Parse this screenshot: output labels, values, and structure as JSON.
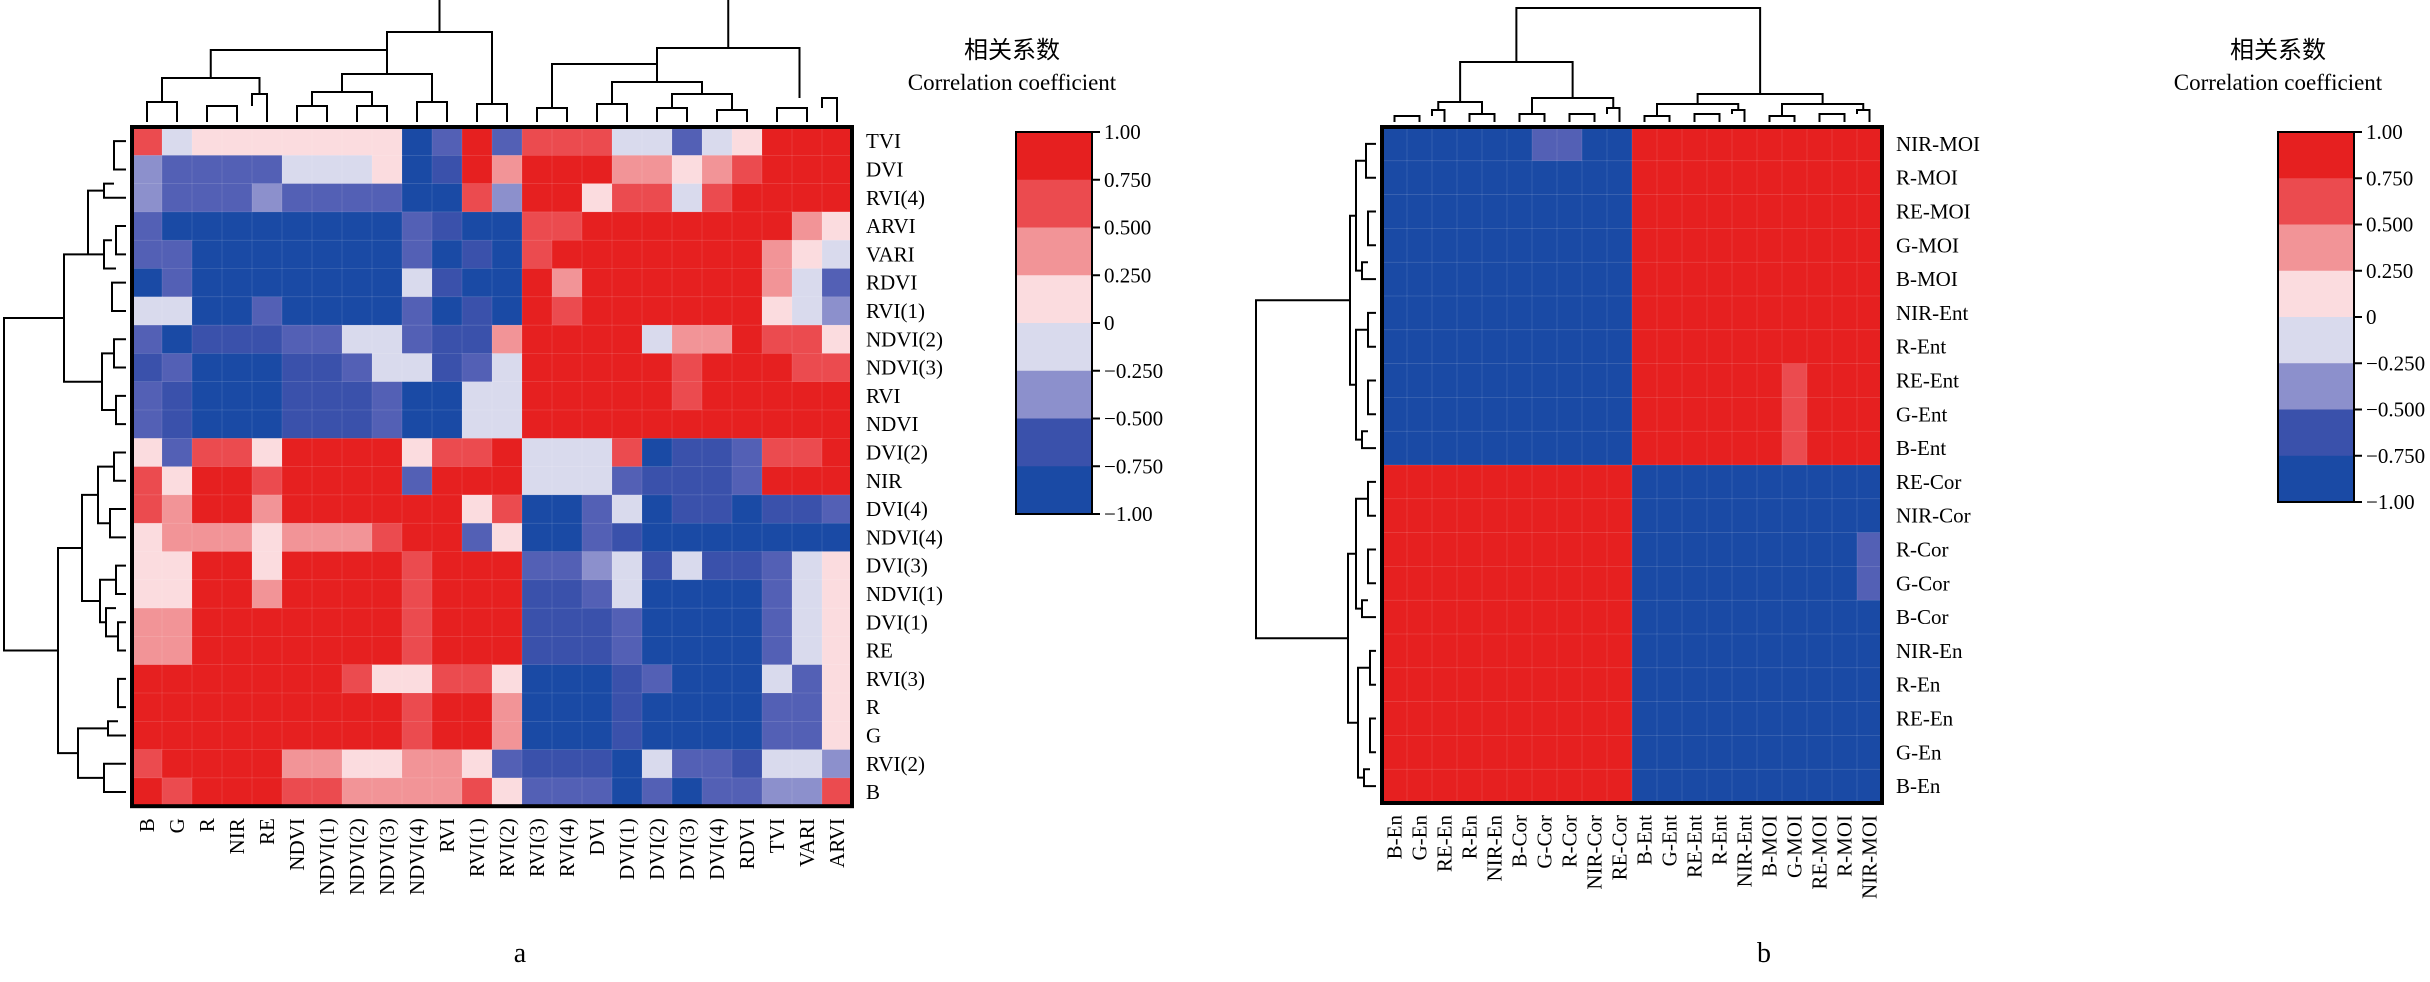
{
  "colors": {
    "scale": [
      "#1a4aa5",
      "#3a51ab",
      "#5360b5",
      "#8c90cc",
      "#d9daed",
      "#fbdcdf",
      "#f29497",
      "#eb4b4f",
      "#e62020"
    ],
    "legend_bands": [
      "#1a4aa5",
      "#3a51ab",
      "#8c90cc",
      "#d9daed",
      "#fbdcdf",
      "#f29497",
      "#eb4b4f",
      "#e62020"
    ]
  },
  "chart_data": [
    {
      "type": "heatmap",
      "panel_label": "a",
      "legend_title_cn": "相关系数",
      "legend_title_en": "Correlation coefficient",
      "legend_ticks": [
        "1.00",
        "0.750",
        "0.500",
        "0.250",
        "0",
        "−0.250",
        "−0.500",
        "−0.750",
        "−1.00"
      ],
      "value_range": [
        -1,
        1
      ],
      "rows": [
        "TVI",
        "DVI",
        "RVI(4)",
        "ARVI",
        "VARI",
        "RDVI",
        "RVI(1)",
        "NDVI(2)",
        "NDVI(3)",
        "RVI",
        "NDVI",
        "DVI(2)",
        "NIR",
        "DVI(4)",
        "NDVI(4)",
        "DVI(3)",
        "NDVI(1)",
        "DVI(1)",
        "RE",
        "RVI(3)",
        "R",
        "G",
        "RVI(2)",
        "B"
      ],
      "columns": [
        "B",
        "G",
        "R",
        "NIR",
        "RE",
        "NDVI",
        "NDVI(1)",
        "NDVI(2)",
        "NDVI(3)",
        "NDVI(4)",
        "RVI",
        "RVI(1)",
        "RVI(2)",
        "RVI(3)",
        "RVI(4)",
        "DVI",
        "DVI(1)",
        "DVI(2)",
        "DVI(3)",
        "DVI(4)",
        "RDVI",
        "TVI",
        "VARI",
        "ARVI"
      ],
      "values": [
        [
          0.6,
          -0.1,
          0.2,
          0.2,
          0.2,
          0.2,
          0.2,
          0.2,
          0.2,
          -0.9,
          -0.5,
          0.9,
          -0.4,
          0.6,
          0.7,
          0.6,
          -0.1,
          -0.1,
          -0.5,
          -0.1,
          0.3,
          1,
          1,
          1
        ],
        [
          -0.2,
          -0.5,
          -0.5,
          -0.5,
          -0.5,
          -0.1,
          -0.1,
          -0.1,
          0.2,
          -0.9,
          -0.7,
          0.8,
          0.5,
          1,
          1,
          1,
          0.4,
          0.4,
          0.2,
          0.4,
          0.6,
          1,
          1,
          1
        ],
        [
          -0.2,
          -0.5,
          -0.5,
          -0.5,
          -0.2,
          -0.5,
          -0.5,
          -0.5,
          -0.5,
          -0.9,
          -0.9,
          0.6,
          -0.2,
          1,
          1,
          0.2,
          0.6,
          0.6,
          -0.1,
          0.6,
          0.8,
          1,
          1,
          1
        ],
        [
          -0.5,
          -0.9,
          -0.9,
          -0.9,
          -0.9,
          -0.9,
          -0.9,
          -0.9,
          -0.9,
          -0.5,
          -0.7,
          -0.8,
          -0.8,
          0.7,
          0.7,
          1,
          1,
          1,
          1,
          1,
          1,
          0.8,
          0.5,
          0.3
        ],
        [
          -0.5,
          -0.5,
          -0.9,
          -0.9,
          -0.9,
          -0.9,
          -0.9,
          -0.9,
          -0.9,
          -0.5,
          -0.8,
          -0.7,
          -0.8,
          0.7,
          0.8,
          1,
          1,
          1,
          1,
          1,
          1,
          0.5,
          0.2,
          -0.1
        ],
        [
          -0.9,
          -0.5,
          -0.9,
          -0.9,
          -0.9,
          -0.9,
          -0.9,
          -0.9,
          -0.9,
          -0.1,
          -0.7,
          -0.9,
          -0.8,
          0.8,
          0.4,
          0.8,
          1,
          1,
          1,
          1,
          1,
          0.5,
          -0.1,
          -0.5
        ],
        [
          -0.1,
          -0.1,
          -0.9,
          -0.9,
          -0.5,
          -0.9,
          -0.9,
          -0.9,
          -0.9,
          -0.5,
          -0.8,
          -0.7,
          -0.9,
          0.8,
          0.6,
          0.8,
          1,
          1,
          1,
          1,
          1,
          0.2,
          0.1,
          -0.2
        ],
        [
          -0.5,
          -0.9,
          -0.7,
          -0.7,
          -0.7,
          -0.5,
          -0.5,
          -0.1,
          -0.1,
          -0.5,
          -0.6,
          -0.7,
          0.5,
          0.8,
          0.8,
          0.8,
          1,
          0.1,
          0.5,
          0.5,
          0.8,
          0.6,
          0.6,
          0.3
        ],
        [
          -0.7,
          -0.5,
          -0.9,
          -0.9,
          -0.9,
          -0.7,
          -0.7,
          -0.5,
          -0.1,
          -0.1,
          -0.7,
          -0.5,
          -0.1,
          1,
          1,
          1,
          0.8,
          0.8,
          0.6,
          1,
          1,
          0.9,
          0.6,
          0.6
        ],
        [
          -0.5,
          -0.7,
          -0.9,
          -0.9,
          -0.9,
          -0.7,
          -0.7,
          -0.7,
          -0.5,
          -0.9,
          -0.9,
          -0.1,
          -0.1,
          1,
          1,
          1,
          0.8,
          0.8,
          0.6,
          0.8,
          1,
          1,
          1,
          1
        ],
        [
          -0.5,
          -0.7,
          -0.9,
          -0.9,
          -0.9,
          -0.7,
          -0.7,
          -0.7,
          -0.5,
          -0.9,
          -0.9,
          -0.1,
          -0.1,
          1,
          1,
          1,
          0.8,
          0.8,
          0.8,
          0.8,
          1,
          1,
          1,
          1
        ],
        [
          0.2,
          -0.5,
          0.7,
          0.7,
          0.2,
          0.8,
          0.8,
          0.8,
          1,
          0.2,
          0.7,
          0.7,
          0.8,
          -0.1,
          -0.1,
          -0.1,
          0.6,
          -0.9,
          -0.7,
          -0.7,
          -0.5,
          0.7,
          0.6,
          1
        ],
        [
          0.6,
          0.2,
          0.8,
          0.8,
          0.6,
          0.8,
          0.8,
          0.8,
          0.8,
          -0.5,
          0.8,
          1,
          1,
          -0.1,
          -0.1,
          -0.1,
          -0.5,
          -0.7,
          -0.7,
          -0.7,
          -0.5,
          0.8,
          0.9,
          1
        ],
        [
          0.6,
          0.5,
          0.8,
          0.8,
          0.5,
          1,
          1,
          1,
          0.8,
          1,
          1,
          0.2,
          0.6,
          -0.9,
          -0.9,
          -0.5,
          -0.1,
          -0.9,
          -0.7,
          -0.7,
          -0.9,
          -0.7,
          -0.7,
          -0.5
        ],
        [
          0.2,
          0.5,
          0.5,
          0.5,
          0.2,
          0.5,
          0.5,
          0.5,
          0.6,
          1,
          1,
          -0.5,
          0.2,
          -0.9,
          -0.9,
          -0.5,
          -0.7,
          -0.9,
          -0.9,
          -0.9,
          -0.9,
          -0.9,
          -0.9,
          -0.9
        ],
        [
          0.2,
          0.2,
          0.8,
          0.8,
          0.2,
          1,
          1,
          1,
          1,
          0.6,
          0.8,
          0.8,
          1,
          -0.5,
          -0.5,
          -0.2,
          -0.1,
          -0.7,
          -0.1,
          -0.7,
          -0.7,
          -0.5,
          0.1,
          0.2
        ],
        [
          0.2,
          0.2,
          1,
          1,
          0.5,
          1,
          1,
          1,
          1,
          0.6,
          1,
          0.8,
          0.8,
          -0.7,
          -0.7,
          -0.5,
          -0.1,
          -0.9,
          -0.9,
          -0.9,
          -0.9,
          -0.5,
          -0.1,
          0.2
        ],
        [
          0.5,
          0.5,
          1,
          1,
          0.8,
          1,
          1,
          1,
          1,
          0.6,
          1,
          0.8,
          0.8,
          -0.7,
          -0.7,
          -0.7,
          -0.5,
          -0.9,
          -0.9,
          -0.9,
          -0.9,
          -0.5,
          -0.1,
          0.2
        ],
        [
          0.5,
          0.5,
          1,
          1,
          0.8,
          1,
          1,
          1,
          1,
          0.6,
          1,
          0.8,
          0.8,
          -0.7,
          -0.7,
          -0.7,
          -0.5,
          -0.9,
          -0.9,
          -0.9,
          -0.9,
          -0.5,
          -0.1,
          0.2
        ],
        [
          0.8,
          0.8,
          1,
          1,
          1,
          0.8,
          0.8,
          0.6,
          0.2,
          0.2,
          0.6,
          0.6,
          0.2,
          -0.9,
          -0.9,
          -0.9,
          -0.7,
          -0.5,
          -0.8,
          -0.9,
          -0.9,
          -0.1,
          -0.5,
          0.2
        ],
        [
          0.8,
          0.8,
          1,
          1,
          1,
          1,
          1,
          1,
          0.8,
          0.6,
          0.8,
          0.8,
          0.5,
          -0.9,
          -0.9,
          -0.9,
          -0.7,
          -0.9,
          -0.9,
          -0.9,
          -0.9,
          -0.5,
          -0.5,
          0.2
        ],
        [
          0.8,
          0.8,
          1,
          1,
          1,
          1,
          1,
          1,
          0.8,
          0.6,
          0.8,
          0.8,
          0.5,
          -0.9,
          -0.9,
          -0.9,
          -0.7,
          -0.9,
          -0.9,
          -0.9,
          -0.9,
          -0.5,
          -0.5,
          0.2
        ],
        [
          0.6,
          1,
          0.8,
          0.8,
          0.8,
          0.5,
          0.5,
          0.2,
          0.2,
          0.5,
          0.5,
          0.2,
          -0.5,
          -0.7,
          -0.7,
          -0.7,
          -0.9,
          -0.1,
          -0.5,
          -0.5,
          -0.7,
          -0.1,
          -0.1,
          -0.2
        ],
        [
          1,
          0.6,
          0.8,
          0.8,
          0.8,
          0.6,
          0.6,
          0.5,
          0.5,
          0.5,
          0.5,
          0.6,
          0.2,
          -0.5,
          -0.5,
          -0.5,
          -0.9,
          -0.5,
          -0.9,
          -0.5,
          -0.5,
          -0.2,
          -0.2,
          0.6
        ]
      ]
    },
    {
      "type": "heatmap",
      "panel_label": "b",
      "legend_title_cn": "相关系数",
      "legend_title_en": "Correlation coefficient",
      "legend_ticks": [
        "1.00",
        "0.750",
        "0.500",
        "0.250",
        "0",
        "−0.250",
        "−0.500",
        "−0.750",
        "−1.00"
      ],
      "value_range": [
        -1,
        1
      ],
      "rows": [
        "NIR-MOI",
        "R-MOI",
        "RE-MOI",
        "G-MOI",
        "B-MOI",
        "NIR-Ent",
        "R-Ent",
        "RE-Ent",
        "G-Ent",
        "B-Ent",
        "RE-Cor",
        "NIR-Cor",
        "R-Cor",
        "G-Cor",
        "B-Cor",
        "NIR-En",
        "R-En",
        "RE-En",
        "G-En",
        "B-En"
      ],
      "columns": [
        "B-En",
        "G-En",
        "RE-En",
        "R-En",
        "NIR-En",
        "B-Cor",
        "G-Cor",
        "R-Cor",
        "NIR-Cor",
        "RE-Cor",
        "B-Ent",
        "G-Ent",
        "RE-Ent",
        "R-Ent",
        "NIR-Ent",
        "B-MOI",
        "G-MOI",
        "RE-MOI",
        "R-MOI",
        "NIR-MOI"
      ],
      "values": [
        [
          -0.8,
          -0.8,
          -0.8,
          -0.8,
          -0.8,
          -0.8,
          -0.5,
          -0.5,
          -0.8,
          -0.8,
          0.8,
          0.8,
          0.8,
          0.8,
          0.8,
          0.8,
          0.8,
          0.8,
          0.8,
          1
        ],
        [
          -0.8,
          -0.8,
          -0.8,
          -0.8,
          -0.8,
          -0.8,
          -0.8,
          -0.8,
          -0.8,
          -0.8,
          0.8,
          0.8,
          0.8,
          0.8,
          0.8,
          0.8,
          1,
          1,
          1,
          0.8
        ],
        [
          -0.8,
          -0.8,
          -0.8,
          -0.8,
          -0.8,
          -0.95,
          -0.8,
          -0.95,
          -0.95,
          -0.95,
          1,
          1,
          1,
          1,
          0.8,
          0.8,
          1,
          1,
          1,
          0.8
        ],
        [
          -0.8,
          -0.8,
          -0.8,
          -0.8,
          -0.8,
          -0.95,
          -0.8,
          -0.95,
          -0.8,
          -0.95,
          0.8,
          0.8,
          0.8,
          1,
          0.8,
          0.8,
          1,
          1,
          1,
          0.8
        ],
        [
          -0.8,
          -0.8,
          -0.8,
          -0.8,
          -0.8,
          -0.95,
          -0.8,
          -0.8,
          -0.8,
          -0.8,
          1,
          0.8,
          0.8,
          0.8,
          0.8,
          1,
          1,
          1,
          0.8,
          0.8
        ],
        [
          -0.95,
          -0.95,
          -0.95,
          -0.95,
          -0.95,
          -0.8,
          -0.8,
          -0.8,
          -0.8,
          -0.8,
          1,
          1,
          1,
          1,
          1,
          0.8,
          0.8,
          0.8,
          0.8,
          0.8
        ],
        [
          -0.95,
          -0.95,
          -0.95,
          -0.95,
          -0.95,
          -0.8,
          -0.8,
          -0.8,
          -0.8,
          -0.8,
          1,
          1,
          1,
          1,
          1,
          0.8,
          0.8,
          1,
          0.8,
          0.8
        ],
        [
          -0.95,
          -0.95,
          -0.95,
          -0.95,
          -0.95,
          -0.8,
          -0.8,
          -0.8,
          -0.8,
          -0.8,
          1,
          1,
          1,
          1,
          1,
          0.8,
          0.7,
          1,
          0.8,
          0.8
        ],
        [
          -0.95,
          -0.95,
          -0.95,
          -0.95,
          -0.95,
          -0.8,
          -0.8,
          -0.8,
          -0.8,
          -0.8,
          1,
          1,
          1,
          1,
          1,
          0.8,
          0.7,
          1,
          0.8,
          0.8
        ],
        [
          -0.95,
          -0.95,
          -0.95,
          -0.95,
          -0.95,
          -0.8,
          -0.8,
          -0.8,
          -0.8,
          -0.8,
          1,
          1,
          1,
          1,
          1,
          1,
          0.7,
          1,
          0.8,
          0.8
        ],
        [
          0.8,
          0.8,
          0.8,
          0.8,
          0.8,
          1,
          1,
          1,
          1,
          1,
          -0.8,
          -0.8,
          -0.8,
          -0.8,
          -0.8,
          -0.8,
          -0.8,
          -0.95,
          -0.8,
          -0.8
        ],
        [
          0.8,
          0.8,
          0.8,
          0.8,
          0.8,
          1,
          0.8,
          1,
          1,
          1,
          -0.8,
          -0.8,
          -0.8,
          -0.8,
          -0.8,
          -0.8,
          -0.8,
          -0.95,
          -0.8,
          -0.8
        ],
        [
          0.8,
          0.8,
          0.8,
          0.8,
          0.8,
          1,
          1,
          1,
          1,
          1,
          -0.8,
          -0.8,
          -0.8,
          -0.8,
          -0.8,
          -0.8,
          -0.95,
          -0.95,
          -0.8,
          -0.5
        ],
        [
          0.8,
          0.8,
          0.8,
          0.8,
          0.8,
          1,
          1,
          1,
          0.8,
          1,
          -0.8,
          -0.8,
          -0.8,
          -0.8,
          -0.8,
          -0.8,
          -0.8,
          -0.8,
          -0.8,
          -0.5
        ],
        [
          1,
          1,
          1,
          1,
          1,
          1,
          1,
          1,
          1,
          1,
          -0.95,
          -0.95,
          -0.95,
          -0.95,
          -0.95,
          -0.95,
          -0.95,
          -0.95,
          -0.8,
          -0.8
        ],
        [
          1,
          1,
          1,
          1,
          1,
          0.8,
          0.8,
          0.8,
          0.8,
          0.8,
          -0.95,
          -0.95,
          -0.95,
          -0.95,
          -0.95,
          -0.8,
          -0.8,
          -0.8,
          -0.8,
          -0.8
        ],
        [
          1,
          1,
          1,
          1,
          1,
          0.8,
          0.8,
          0.8,
          0.8,
          0.8,
          -0.95,
          -0.95,
          -0.95,
          -0.95,
          -0.95,
          -0.8,
          -0.8,
          -0.8,
          -0.8,
          -0.8
        ],
        [
          1,
          1,
          1,
          1,
          1,
          0.8,
          0.8,
          0.8,
          0.8,
          0.8,
          -0.95,
          -0.95,
          -0.95,
          -0.95,
          -0.95,
          -0.8,
          -0.8,
          -0.8,
          -0.8,
          -0.8
        ],
        [
          1,
          1,
          1,
          1,
          1,
          0.8,
          0.8,
          0.8,
          0.8,
          0.8,
          -0.95,
          -0.95,
          -0.95,
          -0.95,
          -0.95,
          -0.8,
          -0.8,
          -0.8,
          -0.8,
          -0.8
        ],
        [
          1,
          1,
          1,
          1,
          1,
          0.8,
          0.8,
          0.8,
          0.8,
          0.8,
          -0.95,
          -0.95,
          -0.95,
          -0.95,
          -0.95,
          -0.8,
          -0.8,
          -0.8,
          -0.8,
          -0.8
        ]
      ]
    }
  ]
}
